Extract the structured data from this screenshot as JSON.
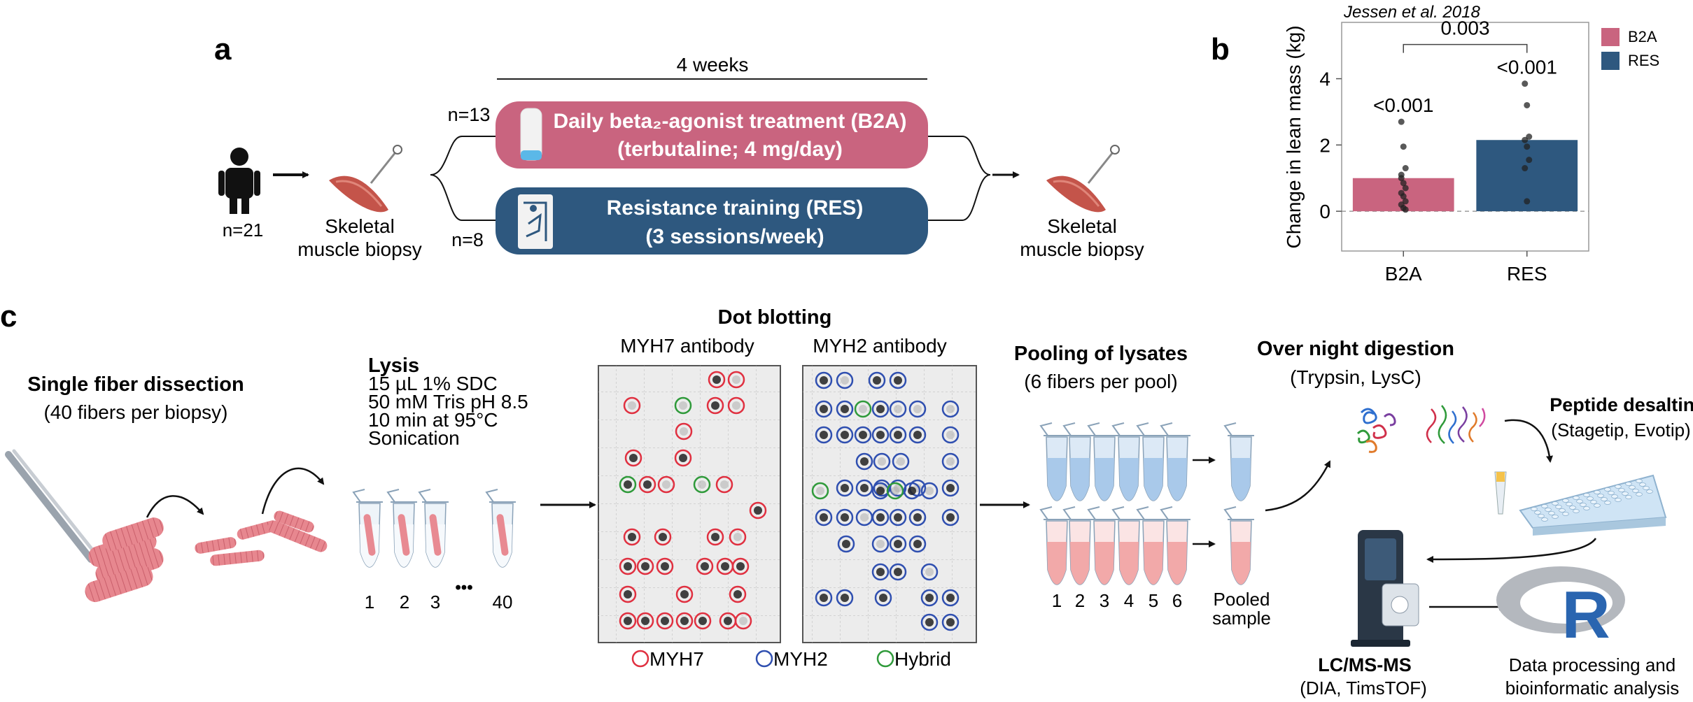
{
  "panel_a": {
    "label": "a",
    "duration": "4 weeks",
    "n_total": "n=21",
    "n_b2a": "n=13",
    "n_res": "n=8",
    "biopsy_label_line1": "Skeletal",
    "biopsy_label_line2": "muscle biopsy",
    "b2a_line1": "Daily beta₂-agonist treatment (B2A)",
    "b2a_line2": "(terbutaline; 4 mg/day)",
    "res_line1": "Resistance training (RES)",
    "res_line2": "(3 sessions/week)",
    "b2a_color": "#c9647f",
    "res_color": "#2e587f"
  },
  "panel_b": {
    "label": "b",
    "citation": "Jessen et al. 2018",
    "chart_data": {
      "type": "bar",
      "title": "",
      "xlabel": "",
      "ylabel": "Change in lean mass (kg)",
      "categories": [
        "B2A",
        "RES"
      ],
      "values": [
        1.0,
        2.15
      ],
      "ylim": [
        -1.2,
        5.7
      ],
      "yticks": [
        "0",
        "2",
        "4"
      ],
      "series_colors": [
        "#c9647f",
        "#2e587f"
      ],
      "points": [
        [
          2.7,
          1.95,
          1.3,
          1.1,
          0.85,
          0.7,
          0.55,
          0.45,
          0.3,
          0.2,
          0.1,
          0.05,
          1.0
        ],
        [
          3.85,
          3.2,
          2.25,
          2.15,
          1.95,
          1.55,
          1.3,
          0.3
        ]
      ],
      "annotations": [
        "<0.001",
        "<0.001",
        "0.003"
      ],
      "legend": [
        {
          "name": "B2A",
          "color": "#c9647f"
        },
        {
          "name": "RES",
          "color": "#2e587f"
        }
      ],
      "legend_position": "right",
      "grid": false
    }
  },
  "panel_c": {
    "label": "c",
    "dissection_title": "Single fiber dissection",
    "dissection_sub": "(40 fibers per biopsy)",
    "lysis_title": "Lysis",
    "lysis_lines": [
      "15 µL 1% SDC",
      "50 mM Tris pH 8.5",
      "10 min at 95°C",
      "Sonication"
    ],
    "tube_numbers": [
      "1",
      "2",
      "3",
      "•••",
      "40"
    ],
    "dot_title": "Dot blotting",
    "myh7_antibody": "MYH7 antibody",
    "myh2_antibody": "MYH2 antibody",
    "legend": [
      {
        "name": "MYH7",
        "color": "#e03040"
      },
      {
        "name": "MYH2",
        "color": "#2f4fb0"
      },
      {
        "name": "Hybrid",
        "color": "#2f9a3a"
      }
    ],
    "pooling_title": "Pooling of lysates",
    "pooling_sub": "(6 fibers per pool)",
    "pool_numbers": [
      "1",
      "2",
      "3",
      "4",
      "5",
      "6"
    ],
    "pooled_line1": "Pooled",
    "pooled_line2": "sample",
    "digestion_title": "Over night digestion",
    "digestion_sub": "(Trypsin, LysC)",
    "desalting_title": "Peptide desalting",
    "desalting_sub": "(Stagetip, Evotip)",
    "lcms_title": "LC/MS-MS",
    "lcms_sub": "(DIA, TimsTOF)",
    "data_line1": "Data processing and",
    "data_line2": "bioinformatic analysis",
    "r_letter": "R"
  }
}
